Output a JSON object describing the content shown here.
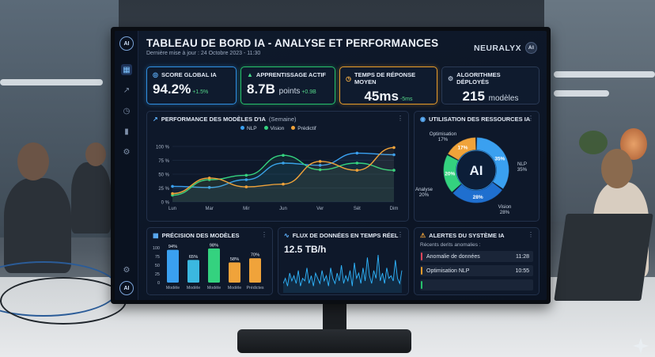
{
  "header": {
    "title": "TABLEAU DE BORD IA - ANALYSE ET PERFORMANCES",
    "subtitle": "Dernière mise à jour : 24 Octobre 2023 - 11:30",
    "brand": "NEURALYX",
    "brand_badge": "AI"
  },
  "sidebar": {
    "logo": "AI",
    "items": [
      {
        "icon": "grid-icon",
        "active": true
      },
      {
        "icon": "trend-icon",
        "active": false
      },
      {
        "icon": "clock-icon",
        "active": false
      },
      {
        "icon": "bar-chart-icon",
        "active": false
      },
      {
        "icon": "gear-icon",
        "active": false
      }
    ],
    "bottom": [
      {
        "icon": "settings-icon"
      },
      {
        "icon": "ai-badge-icon",
        "label": "AI"
      }
    ]
  },
  "kpis": [
    {
      "label": "SCORE GLOBAL IA",
      "value": "94.2%",
      "unit": "",
      "delta": "+1.5%",
      "icon": "globe-icon",
      "accent": "#2f8fe0"
    },
    {
      "label": "APPRENTISSAGE ACTIF",
      "value": "8.7B",
      "unit": "points",
      "delta": "+0.9B",
      "icon": "graduation-cap-icon",
      "accent": "#27c16b"
    },
    {
      "label": "TEMPS DE RÉPONSE MOYEN",
      "value": "45ms",
      "unit": "",
      "delta": "-5ms",
      "icon": "clock-icon",
      "accent": "#e59a2a"
    },
    {
      "label": "ALGORITHMES DÉPLOYÉS",
      "value": "215",
      "unit": "modèles",
      "delta": "",
      "icon": "gear-icon",
      "accent": "#2a3a55"
    }
  ],
  "performance": {
    "title": "PERFORMANCE DES MODÈLES D'IA",
    "subtitle": "(Semaine)"
  },
  "resources": {
    "title": "UTILISATION DES RESSOURCES IA",
    "center_label": "AI"
  },
  "precision": {
    "title": "PRÉCISION DES MODÈLES"
  },
  "flux": {
    "title": "FLUX DE DONNÉES EN TEMPS RÉEL",
    "value": "12.5 TB/h"
  },
  "alerts": {
    "title": "ALERTES DU SYSTÈME IA",
    "subtitle": "Récents derits anomalies :",
    "items": [
      {
        "label": "Anomalie de données",
        "time": "11:28",
        "color": "#e0465a"
      },
      {
        "label": "Optimisation NLP",
        "time": "10:55",
        "color": "#e59a2a"
      },
      {
        "label": "",
        "time": "",
        "color": "#27c16b"
      }
    ]
  },
  "chart_data": [
    {
      "type": "line",
      "title": "PERFORMANCE DES MODÈLES D'IA (Semaine)",
      "categories": [
        "Lun",
        "Mar",
        "Mir",
        "Jun",
        "Ver",
        "Sét",
        "Dim"
      ],
      "ylim": [
        0,
        100
      ],
      "yticks": [
        "0 %",
        "25 %",
        "50 %",
        "75 %",
        "100 %"
      ],
      "series": [
        {
          "name": "NLP",
          "color": "#3aa0f0",
          "values": [
            28,
            26,
            40,
            70,
            66,
            88,
            85
          ]
        },
        {
          "name": "Vision",
          "color": "#34d27f",
          "values": [
            12,
            40,
            48,
            84,
            58,
            70,
            57
          ]
        },
        {
          "name": "Prédictif",
          "color": "#f0a33a",
          "values": [
            15,
            43,
            27,
            32,
            73,
            57,
            98
          ]
        }
      ],
      "grid": true,
      "legend": "top"
    },
    {
      "type": "pie",
      "title": "UTILISATION DES RESSOURCES IA",
      "donut": true,
      "slices": [
        {
          "name": "Optimisation",
          "value": 17,
          "label": "17%",
          "color": "#f0a33a"
        },
        {
          "name": "NLP",
          "value": 35,
          "label": "35%",
          "color": "#3aa0f0"
        },
        {
          "name": "Vision",
          "value": 28,
          "label": "28%",
          "color": "#1f6fcf"
        },
        {
          "name": "Analyse",
          "value": 20,
          "label": "20%",
          "color": "#34d27f"
        }
      ],
      "outer_labels": [
        {
          "name": "Optimisation",
          "pct": "17%"
        },
        {
          "name": "NLP",
          "pct": "35%"
        },
        {
          "name": "Vision",
          "pct": "28%"
        },
        {
          "name": "Analyse",
          "pct": "20%"
        }
      ]
    },
    {
      "type": "bar",
      "title": "PRÉCISION DES MODÈLES",
      "categories": [
        "Modèle",
        "Modèle",
        "Modèle",
        "Modèle",
        "Prédictes"
      ],
      "values": [
        94,
        65,
        98,
        58,
        70
      ],
      "labels": [
        "94%",
        "65%",
        "98%",
        "58%",
        "70%"
      ],
      "colors": [
        "#3aa0f0",
        "#3bb8e0",
        "#34d27f",
        "#f0a33a",
        "#f0a33a"
      ],
      "ylim": [
        0,
        100
      ],
      "yticks": [
        "0",
        "25",
        "50",
        "75",
        "100"
      ]
    },
    {
      "type": "line",
      "title": "FLUX DE DONNÉES EN TEMPS RÉEL",
      "series": [
        {
          "name": "",
          "color": "#2fb6ff",
          "values": [
            3,
            5,
            2,
            7,
            4,
            6,
            3,
            8,
            2,
            5,
            4,
            9,
            3,
            6,
            2,
            7,
            5,
            3,
            8,
            4,
            6,
            2,
            9,
            5,
            3,
            7,
            4,
            10,
            3,
            6,
            4,
            8,
            2,
            11,
            5,
            7,
            3,
            9,
            4,
            13,
            6,
            3,
            8,
            5,
            14,
            4,
            7,
            3,
            9,
            5,
            6,
            4,
            12,
            5,
            3,
            8
          ]
        }
      ]
    }
  ]
}
